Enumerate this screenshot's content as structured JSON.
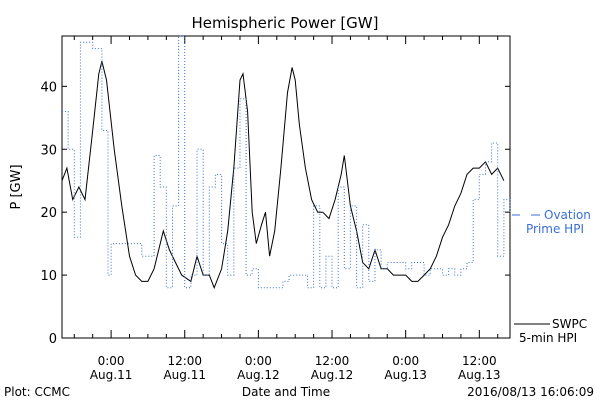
{
  "chart_data": {
    "type": "line",
    "title": "Hemispheric Power [GW]",
    "xlabel": "Date and Time",
    "ylabel": "P [GW]",
    "ylim": [
      0,
      48
    ],
    "yticks": [
      0,
      10,
      20,
      30,
      40
    ],
    "xlim": [
      "2016-08-10 16:00",
      "2016-08-13 17:00"
    ],
    "xticks": [
      {
        "time": "2016-08-11 00:00",
        "line1": "0:00",
        "line2": "Aug.11"
      },
      {
        "time": "2016-08-11 12:00",
        "line1": "12:00",
        "line2": "Aug.11"
      },
      {
        "time": "2016-08-12 00:00",
        "line1": "0:00",
        "line2": "Aug.12"
      },
      {
        "time": "2016-08-12 12:00",
        "line1": "12:00",
        "line2": "Aug.12"
      },
      {
        "time": "2016-08-13 00:00",
        "line1": "0:00",
        "line2": "Aug.13"
      },
      {
        "time": "2016-08-13 12:00",
        "line1": "12:00",
        "line2": "Aug.13"
      }
    ],
    "grid": false,
    "series": [
      {
        "name": "SWPC 5-min HPI",
        "legend_line1": "SWPC",
        "legend_line2": "5-min HPI",
        "style": "solid",
        "color": "#000000",
        "points": [
          [
            "2016-08-10 16:00",
            25
          ],
          [
            "2016-08-10 16:48",
            27
          ],
          [
            "2016-08-10 17:45",
            22
          ],
          [
            "2016-08-10 18:45",
            24
          ],
          [
            "2016-08-10 19:45",
            22
          ],
          [
            "2016-08-10 21:00",
            33
          ],
          [
            "2016-08-10 22:00",
            42
          ],
          [
            "2016-08-10 22:30",
            44
          ],
          [
            "2016-08-10 23:15",
            41
          ],
          [
            "2016-08-11 00:30",
            30
          ],
          [
            "2016-08-11 01:45",
            21
          ],
          [
            "2016-08-11 03:00",
            13
          ],
          [
            "2016-08-11 04:00",
            10
          ],
          [
            "2016-08-11 05:00",
            9
          ],
          [
            "2016-08-11 06:00",
            9
          ],
          [
            "2016-08-11 07:00",
            11
          ],
          [
            "2016-08-11 08:30",
            17
          ],
          [
            "2016-08-11 09:30",
            14
          ],
          [
            "2016-08-11 10:30",
            12
          ],
          [
            "2016-08-11 11:30",
            10
          ],
          [
            "2016-08-11 13:00",
            9
          ],
          [
            "2016-08-11 14:00",
            13
          ],
          [
            "2016-08-11 15:00",
            10
          ],
          [
            "2016-08-11 16:00",
            10
          ],
          [
            "2016-08-11 16:48",
            8
          ],
          [
            "2016-08-11 18:00",
            11
          ],
          [
            "2016-08-11 19:00",
            17
          ],
          [
            "2016-08-11 20:00",
            27
          ],
          [
            "2016-08-11 21:00",
            41
          ],
          [
            "2016-08-11 21:30",
            42
          ],
          [
            "2016-08-11 22:15",
            36
          ],
          [
            "2016-08-11 23:00",
            20
          ],
          [
            "2016-08-11 23:40",
            15
          ],
          [
            "2016-08-12 00:30",
            18
          ],
          [
            "2016-08-12 01:10",
            20
          ],
          [
            "2016-08-12 01:50",
            13
          ],
          [
            "2016-08-12 02:40",
            17
          ],
          [
            "2016-08-12 03:40",
            27
          ],
          [
            "2016-08-12 04:45",
            39
          ],
          [
            "2016-08-12 05:30",
            43
          ],
          [
            "2016-08-12 06:00",
            41
          ],
          [
            "2016-08-12 06:40",
            34
          ],
          [
            "2016-08-12 07:40",
            27
          ],
          [
            "2016-08-12 08:40",
            22
          ],
          [
            "2016-08-12 09:40",
            20
          ],
          [
            "2016-08-12 10:30",
            20
          ],
          [
            "2016-08-12 11:30",
            19
          ],
          [
            "2016-08-12 12:30",
            22
          ],
          [
            "2016-08-12 13:30",
            26
          ],
          [
            "2016-08-12 14:00",
            29
          ],
          [
            "2016-08-12 15:00",
            21
          ],
          [
            "2016-08-12 16:00",
            17
          ],
          [
            "2016-08-12 17:00",
            12
          ],
          [
            "2016-08-12 18:00",
            11
          ],
          [
            "2016-08-12 19:00",
            14
          ],
          [
            "2016-08-12 20:00",
            11
          ],
          [
            "2016-08-12 21:00",
            11
          ],
          [
            "2016-08-12 22:00",
            10
          ],
          [
            "2016-08-12 23:00",
            10
          ],
          [
            "2016-08-13 00:00",
            10
          ],
          [
            "2016-08-13 01:00",
            9
          ],
          [
            "2016-08-13 02:00",
            9
          ],
          [
            "2016-08-13 03:00",
            10
          ],
          [
            "2016-08-13 04:00",
            11
          ],
          [
            "2016-08-13 05:00",
            13
          ],
          [
            "2016-08-13 06:00",
            16
          ],
          [
            "2016-08-13 07:00",
            18
          ],
          [
            "2016-08-13 08:00",
            21
          ],
          [
            "2016-08-13 09:00",
            23
          ],
          [
            "2016-08-13 10:00",
            26
          ],
          [
            "2016-08-13 11:00",
            27
          ],
          [
            "2016-08-13 12:00",
            27
          ],
          [
            "2016-08-13 13:00",
            28
          ],
          [
            "2016-08-13 14:00",
            26
          ],
          [
            "2016-08-13 15:00",
            27
          ],
          [
            "2016-08-13 16:00",
            25
          ]
        ]
      },
      {
        "name": "Ovation Prime HPI",
        "legend_line1": "Ovation",
        "legend_line2": "Prime HPI",
        "style": "dotted-step",
        "color": "#3a6fd8",
        "points": [
          [
            "2016-08-10 16:00",
            36
          ],
          [
            "2016-08-10 17:00",
            30
          ],
          [
            "2016-08-10 18:00",
            16
          ],
          [
            "2016-08-10 19:00",
            47
          ],
          [
            "2016-08-10 21:00",
            46
          ],
          [
            "2016-08-10 22:30",
            33
          ],
          [
            "2016-08-10 23:30",
            10
          ],
          [
            "2016-08-11 00:00",
            15
          ],
          [
            "2016-08-11 04:00",
            15
          ],
          [
            "2016-08-11 05:00",
            13
          ],
          [
            "2016-08-11 07:00",
            29
          ],
          [
            "2016-08-11 08:00",
            24
          ],
          [
            "2016-08-11 09:00",
            8
          ],
          [
            "2016-08-11 10:00",
            21
          ],
          [
            "2016-08-11 11:00",
            48
          ],
          [
            "2016-08-11 12:00",
            8
          ],
          [
            "2016-08-11 13:00",
            10
          ],
          [
            "2016-08-11 14:00",
            30
          ],
          [
            "2016-08-11 15:00",
            10
          ],
          [
            "2016-08-11 16:00",
            24
          ],
          [
            "2016-08-11 17:00",
            26
          ],
          [
            "2016-08-11 18:00",
            15
          ],
          [
            "2016-08-11 19:00",
            10
          ],
          [
            "2016-08-11 20:00",
            27
          ],
          [
            "2016-08-11 21:00",
            38
          ],
          [
            "2016-08-11 22:00",
            10
          ],
          [
            "2016-08-11 23:00",
            11
          ],
          [
            "2016-08-12 00:00",
            8
          ],
          [
            "2016-08-12 04:00",
            9
          ],
          [
            "2016-08-12 05:00",
            10
          ],
          [
            "2016-08-12 06:00",
            10
          ],
          [
            "2016-08-12 08:00",
            8
          ],
          [
            "2016-08-12 09:00",
            21
          ],
          [
            "2016-08-12 10:00",
            8
          ],
          [
            "2016-08-12 11:00",
            13
          ],
          [
            "2016-08-12 12:00",
            8
          ],
          [
            "2016-08-12 13:00",
            24
          ],
          [
            "2016-08-12 14:00",
            11
          ],
          [
            "2016-08-12 15:00",
            21
          ],
          [
            "2016-08-12 16:00",
            8
          ],
          [
            "2016-08-12 17:00",
            18
          ],
          [
            "2016-08-12 18:00",
            9
          ],
          [
            "2016-08-12 19:00",
            14
          ],
          [
            "2016-08-12 20:00",
            11
          ],
          [
            "2016-08-12 21:00",
            12
          ],
          [
            "2016-08-13 00:00",
            11
          ],
          [
            "2016-08-13 01:00",
            12
          ],
          [
            "2016-08-13 03:00",
            10
          ],
          [
            "2016-08-13 04:00",
            11
          ],
          [
            "2016-08-13 06:00",
            10
          ],
          [
            "2016-08-13 07:00",
            11
          ],
          [
            "2016-08-13 08:00",
            10
          ],
          [
            "2016-08-13 09:00",
            11
          ],
          [
            "2016-08-13 10:00",
            12
          ],
          [
            "2016-08-13 11:00",
            22
          ],
          [
            "2016-08-13 12:00",
            26
          ],
          [
            "2016-08-13 13:00",
            28
          ],
          [
            "2016-08-13 14:00",
            31
          ],
          [
            "2016-08-13 15:00",
            13
          ],
          [
            "2016-08-13 16:00",
            22
          ],
          [
            "2016-08-13 17:00",
            20
          ]
        ]
      }
    ]
  },
  "footer": {
    "left": "Plot: CCMC",
    "timestamp": "2016/08/13 16:06:09"
  }
}
